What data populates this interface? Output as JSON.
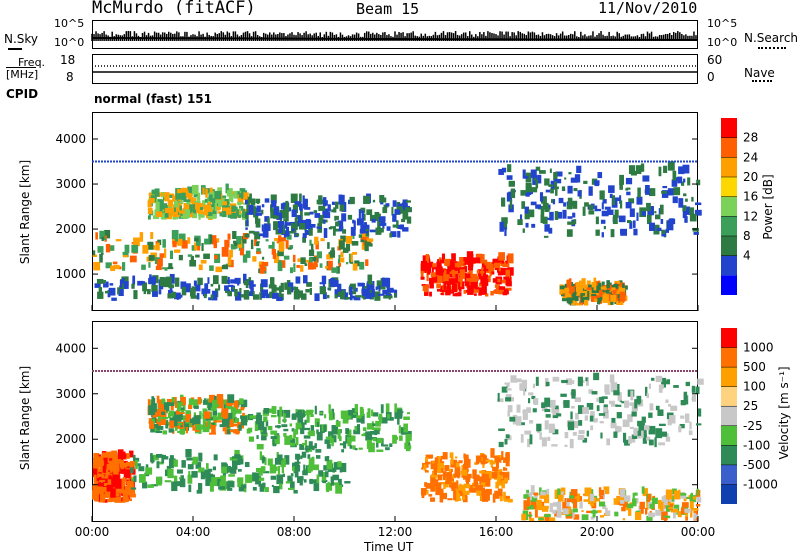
{
  "header": {
    "station": "McMurdo (fitACF)",
    "beam": "Beam 15",
    "date": "11/Nov/2010"
  },
  "noise_panel": {
    "left_label": "N.Sky",
    "right_label": "N.Search",
    "left_ticks": [
      "10^5",
      "10^0"
    ],
    "right_ticks": [
      "10^5",
      "10^0"
    ]
  },
  "freq_panel": {
    "left_label_1": "Freq.",
    "left_label_2": "[MHz]",
    "left_ticks": [
      "18",
      "8"
    ],
    "right_label": "Nave",
    "right_ticks": [
      "60",
      "0"
    ]
  },
  "cpid": {
    "label": "CPID",
    "value": "normal (fast) 151"
  },
  "x_axis": {
    "label": "Time UT",
    "ticks": [
      "00:00",
      "04:00",
      "08:00",
      "12:00",
      "16:00",
      "20:00",
      "00:00"
    ]
  },
  "chart_data": [
    {
      "type": "heatmap",
      "title": "",
      "xlabel": "Time UT",
      "ylabel": "Slant Range [km]",
      "x_ticks": [
        "00:00",
        "04:00",
        "08:00",
        "12:00",
        "16:00",
        "20:00",
        "00:00"
      ],
      "y_ticks": [
        1000,
        2000,
        3000,
        4000
      ],
      "xlim_hours": [
        0,
        24
      ],
      "ylim_km": [
        180,
        4600
      ],
      "colorbar": {
        "label": "Power [dB]",
        "ticks": [
          "28",
          "24",
          "20",
          "16",
          "12",
          "8",
          "4"
        ],
        "colors": [
          "#0000ff",
          "#2244cc",
          "#2d7a43",
          "#3b9f5a",
          "#7bd15a",
          "#ffd700",
          "#ff9f00",
          "#ff5f00",
          "#ff0000"
        ]
      }
    },
    {
      "type": "heatmap",
      "title": "",
      "xlabel": "Time UT",
      "ylabel": "Slant Range [km]",
      "x_ticks": [
        "00:00",
        "04:00",
        "08:00",
        "12:00",
        "16:00",
        "20:00",
        "00:00"
      ],
      "y_ticks": [
        1000,
        2000,
        3000,
        4000
      ],
      "xlim_hours": [
        0,
        24
      ],
      "ylim_km": [
        180,
        4600
      ],
      "colorbar": {
        "label": "Velocity [m s⁻¹]",
        "ticks": [
          "1000",
          "500",
          "100",
          "25",
          "-25",
          "-100",
          "-500",
          "-1000"
        ],
        "colors": [
          "#1040b0",
          "#3a5fcd",
          "#2e8b57",
          "#4fbf3a",
          "#c8c8c8",
          "#ffd27f",
          "#ff9f00",
          "#ff7000",
          "#ff0000"
        ]
      }
    }
  ]
}
